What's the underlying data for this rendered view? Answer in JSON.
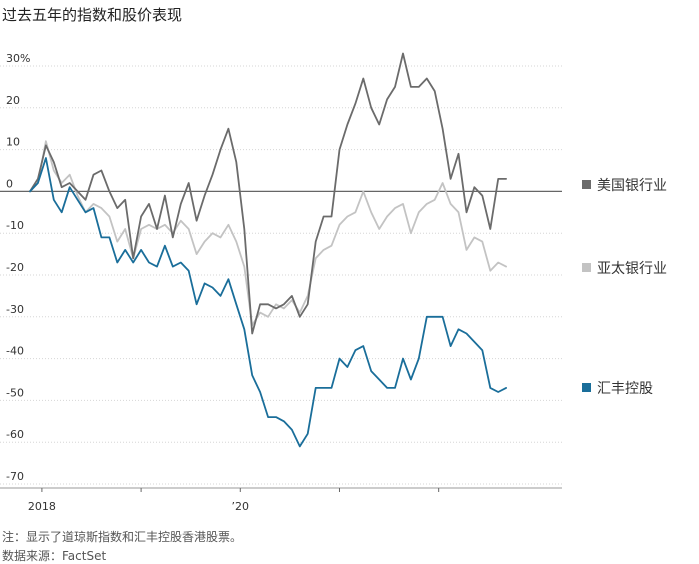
{
  "title": "过去五年的指数和股价表现",
  "footer": {
    "note": "注：显示了道琼斯指数和汇丰控股香港股票。",
    "source": "数据来源：FactSet"
  },
  "chart_data": {
    "type": "line",
    "title": "过去五年的指数和股价表现",
    "ylim": [
      -70,
      30
    ],
    "y_ticks": [
      30,
      20,
      10,
      0,
      -10,
      -20,
      -30,
      -40,
      -50,
      -60,
      -70
    ],
    "y_tick_labels": [
      "30%",
      "20",
      "10",
      "0",
      "-10",
      "-20",
      "-30",
      "-40",
      "-50",
      "-60",
      "-70"
    ],
    "x_tick_labels": [
      {
        "label": "2018",
        "at": 1.5
      },
      {
        "label": "’20",
        "at": 26.5
      }
    ],
    "x_minor_ticks": [
      1.5,
      14,
      26.5,
      39,
      51.5
    ],
    "x_count": 63,
    "grid": true,
    "legend_position": "right",
    "series": [
      {
        "name": "美国银行业",
        "color": "#6b6b6b",
        "values": [
          0,
          3,
          11,
          7,
          1,
          2,
          0,
          -2,
          4,
          5,
          0,
          -4,
          -2,
          -16,
          -6,
          -3,
          -9,
          -1,
          -11,
          -3,
          2,
          -7,
          -1,
          4,
          10,
          15,
          7,
          -9,
          -34,
          -27,
          -27,
          -28,
          -27,
          -25,
          -30,
          -27,
          -12,
          -6,
          -6,
          10,
          16,
          21,
          27,
          20,
          16,
          22,
          25,
          33,
          25,
          25,
          27,
          24,
          15,
          3,
          9,
          -5,
          1,
          -1,
          -9,
          3,
          3
        ]
      },
      {
        "name": "亚太银行业",
        "color": "#c3c3c3",
        "values": [
          0,
          2,
          12,
          5,
          2,
          4,
          -1,
          -5,
          -3,
          -4,
          -6,
          -12,
          -9,
          -16,
          -9,
          -8,
          -9,
          -8,
          -10,
          -7,
          -9,
          -15,
          -12,
          -10,
          -11,
          -8,
          -12,
          -18,
          -32,
          -29,
          -30,
          -27,
          -28,
          -26,
          -29,
          -25,
          -16,
          -14,
          -13,
          -8,
          -6,
          -5,
          0,
          -5,
          -9,
          -6,
          -4,
          -3,
          -10,
          -5,
          -3,
          -2,
          2,
          -3,
          -5,
          -14,
          -11,
          -12,
          -19,
          -17,
          -18
        ]
      },
      {
        "name": "汇丰控股",
        "color": "#1a6e9a",
        "values": [
          0,
          2,
          8,
          -2,
          -5,
          1,
          -2,
          -5,
          -4,
          -11,
          -11,
          -17,
          -14,
          -17,
          -14,
          -17,
          -18,
          -13,
          -18,
          -17,
          -19,
          -27,
          -22,
          -23,
          -25,
          -21,
          -27,
          -33,
          -44,
          -48,
          -54,
          -54,
          -55,
          -57,
          -61,
          -58,
          -47,
          -47,
          -47,
          -40,
          -42,
          -38,
          -37,
          -43,
          -45,
          -47,
          -47,
          -40,
          -45,
          -40,
          -30,
          -30,
          -30,
          -37,
          -33,
          -34,
          -36,
          -38,
          -47,
          -48,
          -47
        ]
      }
    ]
  }
}
